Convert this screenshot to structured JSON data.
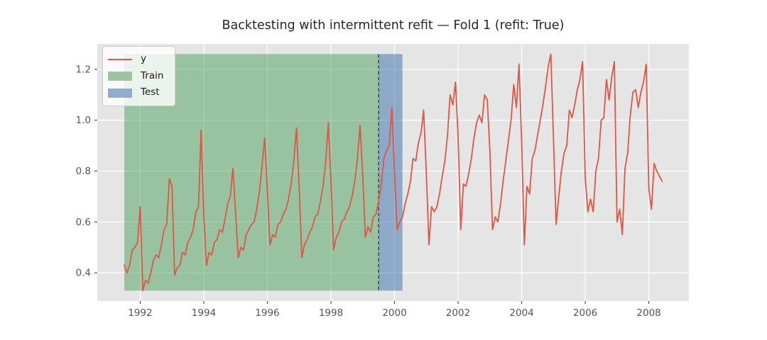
{
  "figure": {
    "title": "Backtesting with intermittent refit — Fold 1 (refit: True)"
  },
  "chart_data": {
    "type": "line",
    "title": "Backtesting with intermittent refit — Fold 1 (refit: True)",
    "xlabel": "",
    "ylabel": "",
    "grid": true,
    "panel_color": "#e5e5e5",
    "grid_color": "#ffffff",
    "tick_color": "#555555",
    "xlim": [
      1990.65,
      2009.26
    ],
    "ylim": [
      0.289,
      1.3
    ],
    "x_ticks": [
      1992,
      1994,
      1996,
      1998,
      2000,
      2002,
      2004,
      2006,
      2008
    ],
    "y_ticks": [
      "0.4",
      "0.6",
      "0.8",
      "1.0",
      "1.2"
    ],
    "y_tick_values": [
      0.4,
      0.6,
      0.8,
      1.0,
      1.2
    ],
    "series": [
      {
        "name": "y",
        "color": "#dd5746",
        "start": "1991-07",
        "freq": "monthly",
        "start_year_frac": 1991.5,
        "step_year_frac": 0.0833333,
        "values": [
          0.43,
          0.4,
          0.43,
          0.49,
          0.5,
          0.52,
          0.66,
          0.33,
          0.37,
          0.36,
          0.4,
          0.45,
          0.47,
          0.46,
          0.51,
          0.57,
          0.59,
          0.77,
          0.74,
          0.39,
          0.42,
          0.43,
          0.48,
          0.47,
          0.52,
          0.54,
          0.57,
          0.64,
          0.66,
          0.96,
          0.63,
          0.43,
          0.48,
          0.47,
          0.52,
          0.53,
          0.57,
          0.56,
          0.61,
          0.67,
          0.7,
          0.81,
          0.64,
          0.46,
          0.5,
          0.49,
          0.55,
          0.57,
          0.59,
          0.6,
          0.65,
          0.72,
          0.82,
          0.93,
          0.72,
          0.51,
          0.55,
          0.54,
          0.59,
          0.6,
          0.63,
          0.65,
          0.69,
          0.75,
          0.84,
          0.97,
          0.74,
          0.46,
          0.51,
          0.53,
          0.56,
          0.58,
          0.62,
          0.63,
          0.68,
          0.74,
          0.83,
          0.99,
          0.76,
          0.49,
          0.54,
          0.56,
          0.6,
          0.61,
          0.64,
          0.66,
          0.7,
          0.76,
          0.85,
          0.98,
          0.78,
          0.54,
          0.58,
          0.56,
          0.62,
          0.63,
          0.68,
          0.75,
          0.85,
          0.88,
          0.9,
          1.05,
          0.8,
          0.57,
          0.6,
          0.62,
          0.67,
          0.71,
          0.76,
          0.85,
          0.84,
          0.91,
          0.95,
          1.04,
          0.79,
          0.51,
          0.66,
          0.64,
          0.66,
          0.71,
          0.78,
          0.84,
          0.94,
          1.1,
          1.06,
          1.15,
          0.94,
          0.57,
          0.75,
          0.74,
          0.79,
          0.85,
          0.93,
          0.99,
          1.02,
          0.99,
          1.1,
          1.08,
          0.88,
          0.57,
          0.62,
          0.6,
          0.67,
          0.76,
          0.84,
          0.92,
          1.0,
          1.14,
          1.05,
          1.22,
          0.91,
          0.51,
          0.74,
          0.71,
          0.85,
          0.88,
          0.94,
          1.0,
          1.06,
          1.13,
          1.21,
          1.26,
          0.93,
          0.59,
          0.7,
          0.8,
          0.87,
          0.9,
          1.04,
          1.01,
          1.06,
          1.12,
          1.16,
          1.23,
          0.77,
          0.64,
          0.69,
          0.64,
          0.8,
          0.85,
          1.0,
          1.01,
          1.16,
          1.08,
          1.17,
          1.23,
          0.6,
          0.65,
          0.55,
          0.81,
          0.87,
          1.02,
          1.11,
          1.12,
          1.05,
          1.11,
          1.15,
          1.22,
          0.73,
          0.65,
          0.83,
          0.8,
          0.78,
          0.76
        ]
      }
    ],
    "regions": [
      {
        "name": "Train",
        "fill": "rgba(60,150,75,0.45)",
        "legend_color": "#9cc4a2",
        "x_start": 1991.5,
        "x_end": 1999.5,
        "span_label": "1991-07 to 1999-06",
        "y_min": 0.33,
        "y_max": 1.26
      },
      {
        "name": "Test",
        "fill": "rgba(55,110,170,0.5)",
        "legend_color": "#8fadcc",
        "x_start": 1999.5,
        "x_end": 2000.25,
        "span_label": "1999-07 to 2000-03",
        "y_min": 0.33,
        "y_max": 1.26
      }
    ],
    "refit_boundary": {
      "x": 1999.5,
      "color": "#3b3f42",
      "dash": "5 3"
    },
    "legend": {
      "position": "upper left",
      "entries": [
        {
          "label": "y",
          "type": "line",
          "color": "#dd5746"
        },
        {
          "label": "Train",
          "type": "patch",
          "color": "#9cc4a2"
        },
        {
          "label": "Test",
          "type": "patch",
          "color": "#8fadcc"
        }
      ]
    }
  }
}
